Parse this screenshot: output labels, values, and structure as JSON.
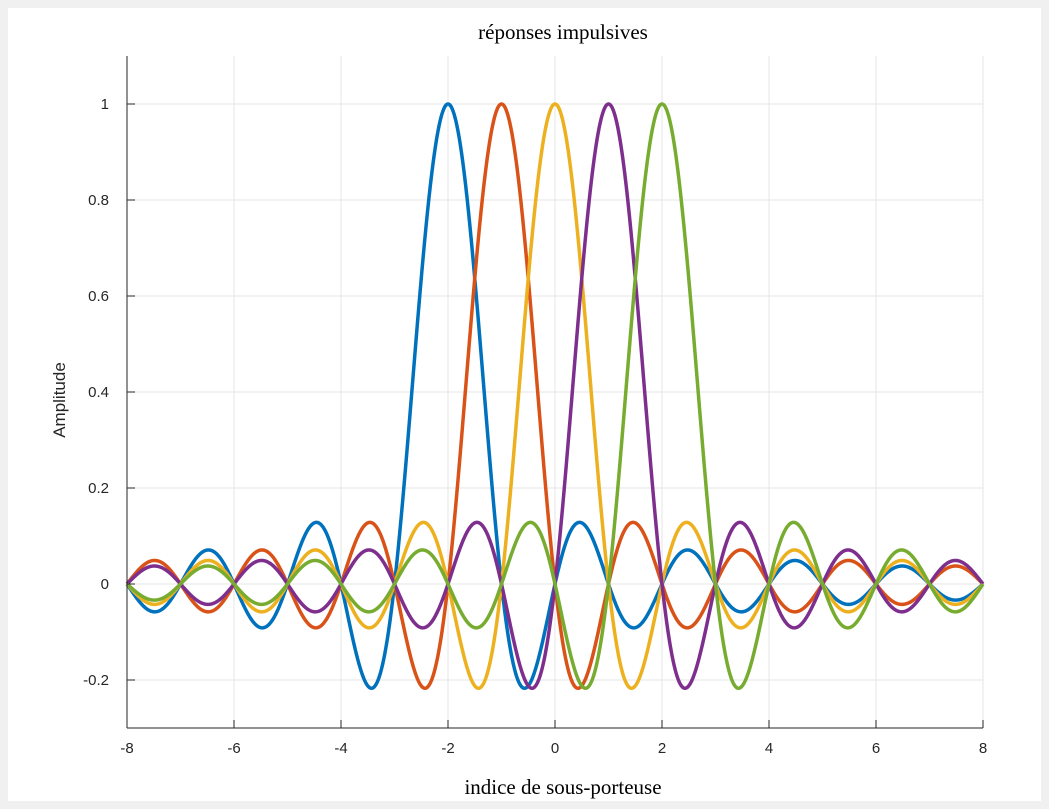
{
  "chart_data": {
    "type": "line",
    "title": "réponses impulsives",
    "xlabel": "indice de sous-porteuse",
    "ylabel": "Amplitude",
    "xlim": [
      -8,
      8
    ],
    "ylim": [
      -0.3,
      1.1
    ],
    "xticks": [
      -8,
      -6,
      -4,
      -2,
      0,
      2,
      4,
      6,
      8
    ],
    "xtick_labels": [
      "-8",
      "-6",
      "-4",
      "-2",
      "0",
      "2",
      "4",
      "6",
      "8"
    ],
    "yticks": [
      -0.2,
      0,
      0.2,
      0.4,
      0.6,
      0.8,
      1
    ],
    "ytick_labels": [
      "-0.2",
      "0",
      "0.2",
      "0.4",
      "0.6",
      "0.8",
      "1"
    ],
    "grid": true,
    "function": "sinc",
    "series": [
      {
        "center": -2,
        "color": "#0072BD"
      },
      {
        "center": -1,
        "color": "#D95319"
      },
      {
        "center": 0,
        "color": "#EDB120"
      },
      {
        "center": 1,
        "color": "#7E2F8E"
      },
      {
        "center": 2,
        "color": "#77AC30"
      }
    ]
  }
}
